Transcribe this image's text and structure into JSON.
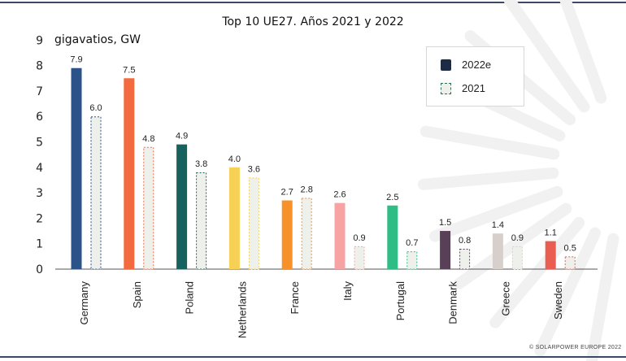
{
  "chart_data": {
    "type": "bar",
    "title": "Top 10 UE27. Años 2021 y 2022",
    "ylabel": "gigavatios, GW",
    "ylim": [
      0,
      9
    ],
    "yticks": [
      "0",
      "1",
      "2",
      "3",
      "4",
      "5",
      "6",
      "7",
      "8",
      "9"
    ],
    "categories": [
      "Germany",
      "Spain",
      "Poland",
      "Netherlands",
      "France",
      "Italy",
      "Portugal",
      "Denmark",
      "Greece",
      "Sweden"
    ],
    "series": [
      {
        "name": "2022e",
        "style": "solid",
        "values": [
          7.9,
          7.5,
          4.9,
          4.0,
          2.7,
          2.6,
          2.5,
          1.5,
          1.4,
          1.1
        ],
        "labels": [
          "7.9",
          "7.5",
          "4.9",
          "4.0",
          "2.7",
          "2.6",
          "2.5",
          "1.5",
          "1.4",
          "1.1"
        ],
        "colors": [
          "#2b5289",
          "#f26a3d",
          "#17625f",
          "#f7d155",
          "#f7922b",
          "#f7a3a4",
          "#2fbc85",
          "#5a3f58",
          "#d6cfcb",
          "#ea5e52"
        ]
      },
      {
        "name": "2021",
        "style": "dashed",
        "values": [
          6.0,
          4.8,
          3.8,
          3.6,
          2.8,
          0.9,
          0.7,
          0.8,
          0.9,
          0.5
        ],
        "labels": [
          "6.0",
          "4.8",
          "3.8",
          "3.6",
          "2.8",
          "0.9",
          "0.7",
          "0.8",
          "0.9",
          "0.5"
        ],
        "fill": "#eef0ec",
        "stroke_colors": [
          "#2b5289",
          "#f26a3d",
          "#17625f",
          "#f7d155",
          "#f7922b",
          "#f7a3a4",
          "#2fbc85",
          "#5a3f58",
          "#d6cfcb",
          "#ea5e52"
        ]
      }
    ],
    "legend": {
      "position": "top-right",
      "items": [
        "2022e",
        "2021"
      ]
    },
    "gridlines": false
  },
  "copyright": "© SOLARPOWER EUROPE 2022",
  "colors": {
    "axis": "#555555",
    "frame": "#3b4a63",
    "sunburst": "#f1f1f1"
  }
}
